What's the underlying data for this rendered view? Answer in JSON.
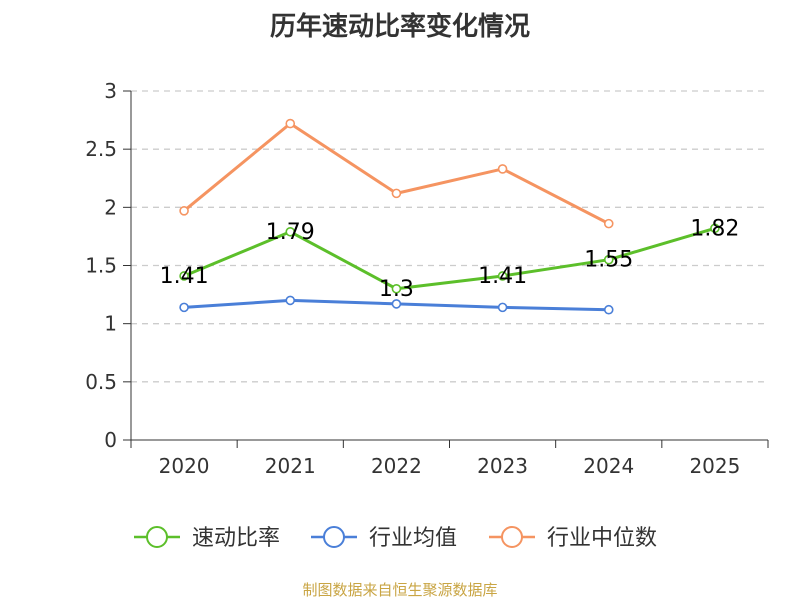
{
  "chart_data": {
    "type": "line",
    "title": "历年速动比率变化情况",
    "categories": [
      "2020",
      "2021",
      "2022",
      "2023",
      "2024",
      "2025"
    ],
    "ylim": [
      0,
      3
    ],
    "yticks": [
      0,
      0.5,
      1,
      1.5,
      2,
      2.5,
      3
    ],
    "ytick_labels": [
      "0",
      "0.5",
      "1",
      "1.5",
      "2",
      "2.5",
      "3"
    ],
    "grid": true,
    "legend_position": "bottom",
    "series": [
      {
        "name": "速动比率",
        "color": "#5cbf2a",
        "values": [
          1.41,
          1.79,
          1.3,
          1.41,
          1.55,
          1.82
        ],
        "labels": [
          "1.41",
          "1.79",
          "1.3",
          "1.41",
          "1.55",
          "1.82"
        ]
      },
      {
        "name": "行业均值",
        "color": "#4a7fd8",
        "values": [
          1.14,
          1.2,
          1.17,
          1.14,
          1.12,
          null
        ]
      },
      {
        "name": "行业中位数",
        "color": "#f59461",
        "values": [
          1.97,
          2.72,
          2.12,
          2.33,
          1.86,
          null
        ]
      }
    ]
  },
  "source": "制图数据来自恒生聚源数据库"
}
